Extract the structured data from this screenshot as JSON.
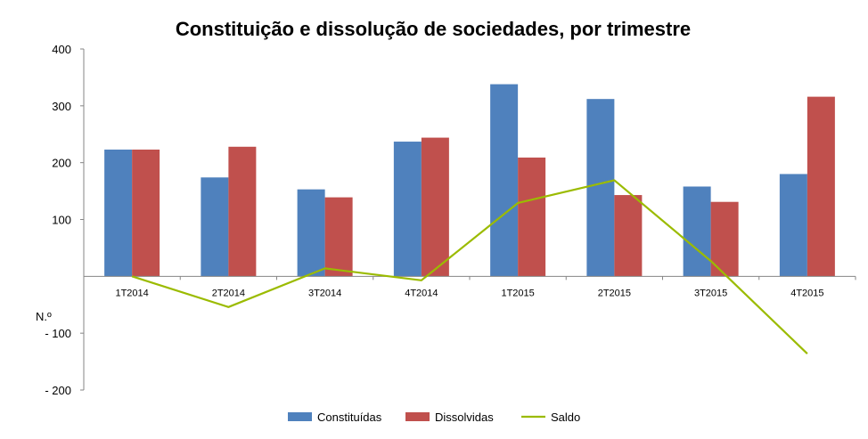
{
  "chart_data": {
    "type": "bar",
    "title": "Constituição e dissolução de sociedades, por trimestre",
    "ylabel": "N.º",
    "ylim": [
      -200,
      400
    ],
    "yticks": [
      400,
      300,
      200,
      100,
      -100,
      -200
    ],
    "ytick_labels": [
      "400",
      "300",
      "200",
      "100",
      "- 100",
      "- 200"
    ],
    "categories": [
      "1T2014",
      "2T2014",
      "3T2014",
      "4T2014",
      "1T2015",
      "2T2015",
      "3T2015",
      "4T2015"
    ],
    "series": [
      {
        "name": "Constituídas",
        "type": "bar",
        "color": "#4F81BD",
        "values": [
          223,
          174,
          153,
          237,
          338,
          312,
          158,
          180
        ]
      },
      {
        "name": "Dissolvidas",
        "type": "bar",
        "color": "#C0504D",
        "values": [
          223,
          228,
          139,
          244,
          209,
          143,
          131,
          316
        ]
      },
      {
        "name": "Saldo",
        "type": "line",
        "color": "#9BBB00",
        "values": [
          0,
          -54,
          14,
          -7,
          129,
          169,
          27,
          -136
        ]
      }
    ],
    "legend_position": "bottom",
    "grid": false
  }
}
